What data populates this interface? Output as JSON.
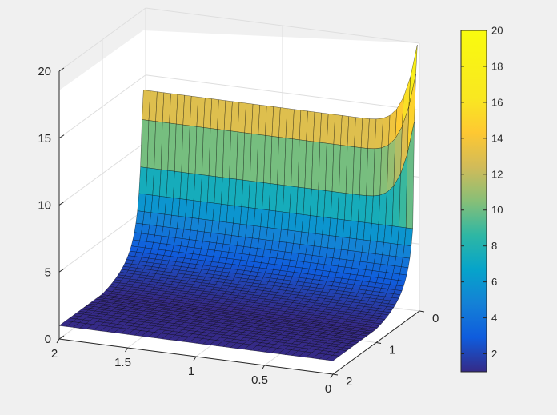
{
  "chart_data": {
    "type": "surface",
    "title": "",
    "xlabel": "",
    "ylabel": "",
    "zlabel": "",
    "xlim": [
      0,
      2
    ],
    "ylim": [
      0,
      2
    ],
    "zlim": [
      0,
      20
    ],
    "x_ticks": [
      "0",
      "0.5",
      "1",
      "1.5",
      "2"
    ],
    "y_ticks": [
      "0",
      "1",
      "2"
    ],
    "z_ticks": [
      "0",
      "5",
      "10",
      "15",
      "20"
    ],
    "colorbar": {
      "range": [
        1,
        20
      ],
      "ticks": [
        "2",
        "4",
        "6",
        "8",
        "10",
        "12",
        "14",
        "16",
        "18",
        "20"
      ],
      "colormap": "parula"
    },
    "grid": true,
    "surface": {
      "x_range": [
        0,
        2
      ],
      "y_range": [
        0.05,
        2
      ],
      "z_min": 1,
      "z_max": 20,
      "clip_max": 14,
      "shape": "z = 1/y clipped at 14, rising toward 20 where x and y approach 0"
    },
    "colors": {
      "background": "#f0f0f0",
      "axes_face": "#ffffff",
      "grid": "#dedede",
      "axis_line": "#262626",
      "mesh_edge": "#000000"
    }
  }
}
